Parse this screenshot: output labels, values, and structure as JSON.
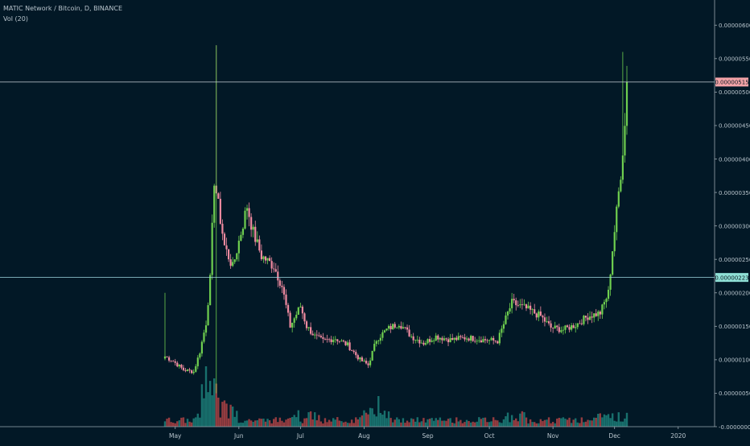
{
  "header": {
    "symbol_line": "MATIC Network / Bitcoin, D, BINANCE",
    "volume_line": "Vol (20)"
  },
  "colors": {
    "background": "#021826",
    "up": "#26a69a",
    "up_candle": "#6fcf4f",
    "down": "#ef5350",
    "down_candle": "#f08aa0",
    "grid_border": "#9aa7b0",
    "text": "#b8c4cc",
    "resistance_line": "#c9d1d6",
    "support_line": "#9fd8e0",
    "price_badge": "#f4a3a8",
    "support_badge": "#8fe0d6"
  },
  "chart_data": {
    "type": "candlestick",
    "title": "MATIC Network / Bitcoin, D, BINANCE",
    "x_axis": {
      "ticks": [
        "May",
        "Jun",
        "Jul",
        "Aug",
        "Sep",
        "Oct",
        "Nov",
        "Dec",
        "2020"
      ]
    },
    "y_axis": {
      "range": [
        0,
        6.4e-06
      ],
      "ticks": [
        "0.00000600",
        "0.00000550",
        "0.00000500",
        "0.00000450",
        "0.00000400",
        "0.00000350",
        "0.00000300",
        "0.00000250",
        "0.00000200",
        "0.00000150",
        "0.00000100",
        "0.00000050",
        "-0.00000000"
      ]
    },
    "horizontal_lines": [
      {
        "label": "0.00000515",
        "value": 5.15e-06,
        "kind": "current-price"
      },
      {
        "label": "0.00000223",
        "value": 2.23e-06,
        "kind": "support"
      }
    ],
    "price_points": [
      [
        "2019-04-26",
        1.05e-06
      ],
      [
        "2019-04-30",
        9.8e-07
      ],
      [
        "2019-05-05",
        8.5e-07
      ],
      [
        "2019-05-10",
        8.2e-07
      ],
      [
        "2019-05-13",
        1.12e-06
      ],
      [
        "2019-05-16",
        1.55e-06
      ],
      [
        "2019-05-18",
        2.2e-06
      ],
      [
        "2019-05-20",
        3.7e-06
      ],
      [
        "2019-05-22",
        3.3e-06
      ],
      [
        "2019-05-25",
        2.7e-06
      ],
      [
        "2019-05-29",
        2.38e-06
      ],
      [
        "2019-06-02",
        2.9e-06
      ],
      [
        "2019-06-05",
        3.3e-06
      ],
      [
        "2019-06-08",
        2.9e-06
      ],
      [
        "2019-06-12",
        2.55e-06
      ],
      [
        "2019-06-18",
        2.4e-06
      ],
      [
        "2019-06-22",
        2.1e-06
      ],
      [
        "2019-06-26",
        1.5e-06
      ],
      [
        "2019-07-01",
        1.8e-06
      ],
      [
        "2019-07-04",
        1.5e-06
      ],
      [
        "2019-07-08",
        1.35e-06
      ],
      [
        "2019-07-12",
        1.28e-06
      ],
      [
        "2019-07-18",
        1.32e-06
      ],
      [
        "2019-07-24",
        1.22e-06
      ],
      [
        "2019-07-30",
        1e-06
      ],
      [
        "2019-08-03",
        9.2e-07
      ],
      [
        "2019-08-07",
        1.3e-06
      ],
      [
        "2019-08-12",
        1.45e-06
      ],
      [
        "2019-08-18",
        1.55e-06
      ],
      [
        "2019-08-24",
        1.35e-06
      ],
      [
        "2019-08-30",
        1.25e-06
      ],
      [
        "2019-09-05",
        1.35e-06
      ],
      [
        "2019-09-12",
        1.3e-06
      ],
      [
        "2019-09-20",
        1.33e-06
      ],
      [
        "2019-09-28",
        1.3e-06
      ],
      [
        "2019-10-05",
        1.28e-06
      ],
      [
        "2019-10-10",
        1.7e-06
      ],
      [
        "2019-10-12",
        1.85e-06
      ],
      [
        "2019-10-18",
        1.78e-06
      ],
      [
        "2019-10-26",
        1.65e-06
      ],
      [
        "2019-10-31",
        1.48e-06
      ],
      [
        "2019-11-06",
        1.45e-06
      ],
      [
        "2019-11-12",
        1.52e-06
      ],
      [
        "2019-11-18",
        1.65e-06
      ],
      [
        "2019-11-24",
        1.7e-06
      ],
      [
        "2019-11-28",
        2e-06
      ],
      [
        "2019-11-30",
        2.65e-06
      ],
      [
        "2019-12-02",
        3.2e-06
      ],
      [
        "2019-12-04",
        3.8e-06
      ],
      [
        "2019-12-06",
        4.5e-06
      ],
      [
        "2019-12-07",
        5.15e-06
      ]
    ],
    "volume_series": "daily volume bars, colored by candle direction"
  }
}
